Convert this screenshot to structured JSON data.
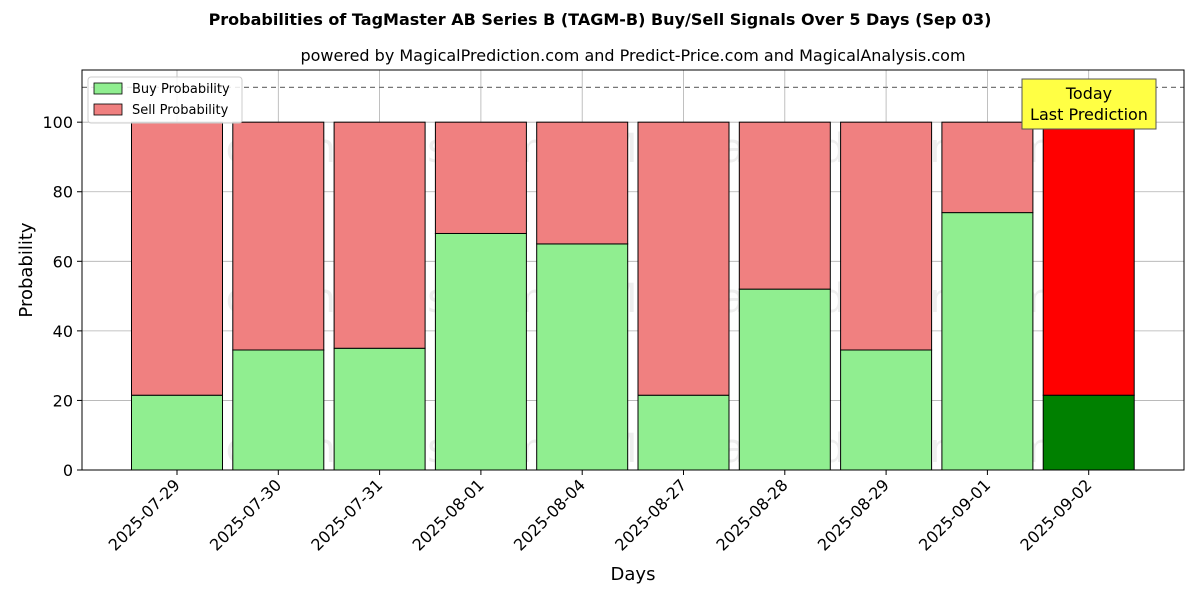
{
  "chart_data": {
    "type": "bar",
    "title": "Probabilities of TagMaster AB Series B (TAGM-B) Buy/Sell Signals Over 5 Days (Sep 03)",
    "subtitle": "powered by MagicalPrediction.com and Predict-Price.com and MagicalAnalysis.com",
    "xlabel": "Days",
    "ylabel": "Probability",
    "ylim": [
      0,
      115
    ],
    "yticks": [
      0,
      20,
      40,
      60,
      80,
      100
    ],
    "grid": true,
    "legend_position": "top-left",
    "categories": [
      "2025-07-29",
      "2025-07-30",
      "2025-07-31",
      "2025-08-01",
      "2025-08-04",
      "2025-08-27",
      "2025-08-28",
      "2025-08-29",
      "2025-09-01",
      "2025-09-02"
    ],
    "series": [
      {
        "name": "Buy Probability",
        "values": [
          21.5,
          34.5,
          35,
          68,
          65,
          21.5,
          52,
          34.5,
          74,
          21.5
        ]
      },
      {
        "name": "Sell Probability",
        "values": [
          78.5,
          65.5,
          65,
          32,
          35,
          78.5,
          48,
          65.5,
          26,
          78.5
        ]
      }
    ],
    "reference_line": {
      "y": 110,
      "style": "dashed"
    },
    "annotation": {
      "text_line1": "Today",
      "text_line2": "Last Prediction"
    },
    "colors": {
      "buy": "#90ee90",
      "sell": "#f08080",
      "buy_highlight": "#008000",
      "sell_highlight": "#ff0000",
      "annotation_bg": "#ffff44"
    },
    "watermarks": [
      "MagicalAnalysis.com",
      "MagicalPrediction.com"
    ]
  }
}
